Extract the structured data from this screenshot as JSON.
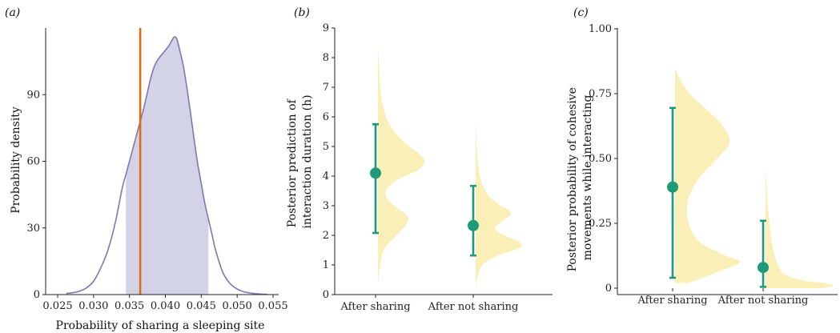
{
  "chart_data": [
    {
      "panel": "(a)",
      "type": "area",
      "xlabel": "Probability of sharing a sleeping site",
      "ylabel": "Probability density",
      "xlim": [
        0.025,
        0.055
      ],
      "ylim": [
        0,
        120
      ],
      "xticks": [
        "0.025",
        "0.030",
        "0.035",
        "0.040",
        "0.045",
        "0.050",
        "0.055"
      ],
      "yticks": [
        "0",
        "30",
        "60",
        "90"
      ],
      "density": {
        "x": [
          0.0262,
          0.027,
          0.028,
          0.029,
          0.03,
          0.031,
          0.032,
          0.033,
          0.034,
          0.0345,
          0.035,
          0.0355,
          0.036,
          0.0365,
          0.037,
          0.0375,
          0.038,
          0.0385,
          0.039,
          0.0395,
          0.04,
          0.0405,
          0.041,
          0.0413,
          0.0416,
          0.042,
          0.0425,
          0.043,
          0.0435,
          0.044,
          0.0445,
          0.045,
          0.0455,
          0.046,
          0.0465,
          0.047,
          0.048,
          0.049,
          0.05,
          0.051,
          0.052,
          0.053,
          0.0542
        ],
        "y": [
          0.5,
          0.8,
          1.5,
          3,
          6,
          12,
          20,
          32,
          48,
          54,
          60,
          66,
          72,
          78,
          84,
          91,
          98,
          103,
          106,
          108,
          110,
          112,
          115,
          116,
          115,
          110,
          103,
          93,
          82,
          70,
          59,
          50,
          41,
          34,
          27,
          20,
          10,
          5,
          2.5,
          1.2,
          0.6,
          0.3,
          0.1
        ]
      },
      "interval": [
        0.0345,
        0.046
      ],
      "reference_line": 0.0365,
      "colors": {
        "fill": "#d3d3e8",
        "line": "#7e77b4",
        "reference": "#de6a12"
      }
    },
    {
      "panel": "(b)",
      "type": "scatter",
      "xlabel": "",
      "ylabel": "Posterior prediction of interaction duration (h)",
      "categories": [
        "After sharing",
        "After not sharing"
      ],
      "ylim": [
        0,
        9
      ],
      "yticks": [
        "0",
        "1",
        "2",
        "3",
        "4",
        "5",
        "6",
        "7",
        "8",
        "9"
      ],
      "points": [
        {
          "category": "After sharing",
          "mean": 4.1,
          "lower": 2.08,
          "upper": 5.75
        },
        {
          "category": "After not sharing",
          "mean": 2.33,
          "lower": 1.32,
          "upper": 3.67
        }
      ],
      "distributions": [
        {
          "category": "After sharing",
          "y": [
            0.3,
            0.8,
            1.5,
            2.0,
            2.4,
            2.65,
            3.0,
            3.3,
            3.6,
            3.9,
            4.2,
            4.45,
            4.6,
            4.8,
            5.1,
            5.5,
            5.9,
            6.4,
            7.0,
            7.8,
            8.5
          ],
          "density": [
            0,
            0.03,
            0.12,
            0.4,
            0.62,
            0.63,
            0.35,
            0.18,
            0.2,
            0.45,
            0.85,
            1.0,
            0.98,
            0.85,
            0.6,
            0.35,
            0.2,
            0.1,
            0.05,
            0.02,
            0
          ]
        },
        {
          "category": "After not sharing",
          "y": [
            0.2,
            0.6,
            1.0,
            1.3,
            1.55,
            1.68,
            1.85,
            2.05,
            2.25,
            2.45,
            2.65,
            2.8,
            3.0,
            3.3,
            3.7,
            4.2,
            5.0,
            6.0
          ],
          "density": [
            0,
            0.04,
            0.15,
            0.45,
            0.92,
            1.0,
            0.85,
            0.55,
            0.42,
            0.55,
            0.72,
            0.75,
            0.55,
            0.3,
            0.15,
            0.07,
            0.02,
            0
          ]
        }
      ],
      "colors": {
        "point": "#1d9a77",
        "dist": "#f9efb7"
      }
    },
    {
      "panel": "(c)",
      "type": "scatter",
      "xlabel": "",
      "ylabel": "Posterior probability of cohesive movements while interacting",
      "categories": [
        "After sharing",
        "After not sharing"
      ],
      "ylim": [
        0,
        1
      ],
      "yticks": [
        "0",
        "0.25",
        "0.50",
        "0.75",
        "1.00"
      ],
      "points": [
        {
          "category": "After sharing",
          "mean": 0.39,
          "lower": 0.04,
          "upper": 0.695
        },
        {
          "category": "After not sharing",
          "mean": 0.08,
          "lower": 0.005,
          "upper": 0.26
        }
      ],
      "distributions": [
        {
          "category": "After sharing",
          "y": [
            0.02,
            0.06,
            0.1,
            0.13,
            0.18,
            0.25,
            0.32,
            0.38,
            0.44,
            0.5,
            0.56,
            0.62,
            0.68,
            0.74,
            0.8,
            0.85
          ],
          "density": [
            0.2,
            0.6,
            0.95,
            0.7,
            0.35,
            0.2,
            0.18,
            0.25,
            0.4,
            0.62,
            0.8,
            0.72,
            0.5,
            0.25,
            0.08,
            0
          ]
        },
        {
          "category": "After not sharing",
          "y": [
            0.0,
            0.01,
            0.02,
            0.03,
            0.05,
            0.08,
            0.12,
            0.18,
            0.25,
            0.33,
            0.42,
            0.46
          ],
          "density": [
            0.85,
            1.0,
            0.85,
            0.55,
            0.3,
            0.2,
            0.14,
            0.09,
            0.06,
            0.03,
            0.01,
            0
          ]
        }
      ],
      "colors": {
        "point": "#1d9a77",
        "dist": "#f9efb7"
      }
    }
  ]
}
